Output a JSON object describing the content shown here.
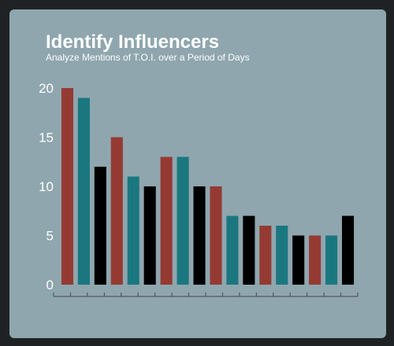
{
  "chart_data": {
    "type": "bar",
    "title": "Identify Influencers",
    "subtitle": "Analyze Mentions of T.O.I. over a Period of Days",
    "xlabel": "",
    "ylabel": "",
    "ylim": [
      0,
      20
    ],
    "y_ticks": [
      "0",
      "5",
      "10",
      "15",
      "20"
    ],
    "grid": false,
    "legend": "none",
    "values": [
      20,
      19,
      12,
      15,
      11,
      10,
      13,
      13,
      10,
      10,
      7,
      7,
      6,
      6,
      5,
      5,
      5,
      7
    ],
    "bar_colors": [
      "#953a33",
      "#1a7780",
      "#000000",
      "#953a33",
      "#1a7780",
      "#000000",
      "#953a33",
      "#1a7780",
      "#000000",
      "#953a33",
      "#1a7780",
      "#000000",
      "#953a33",
      "#1a7780",
      "#000000",
      "#953a33",
      "#1a7780",
      "#000000"
    ],
    "axis_color": "#3d4a50",
    "text_color": "#ffffff"
  },
  "colors": {
    "background": "#8fa6ae",
    "outer": "#1f2224"
  }
}
